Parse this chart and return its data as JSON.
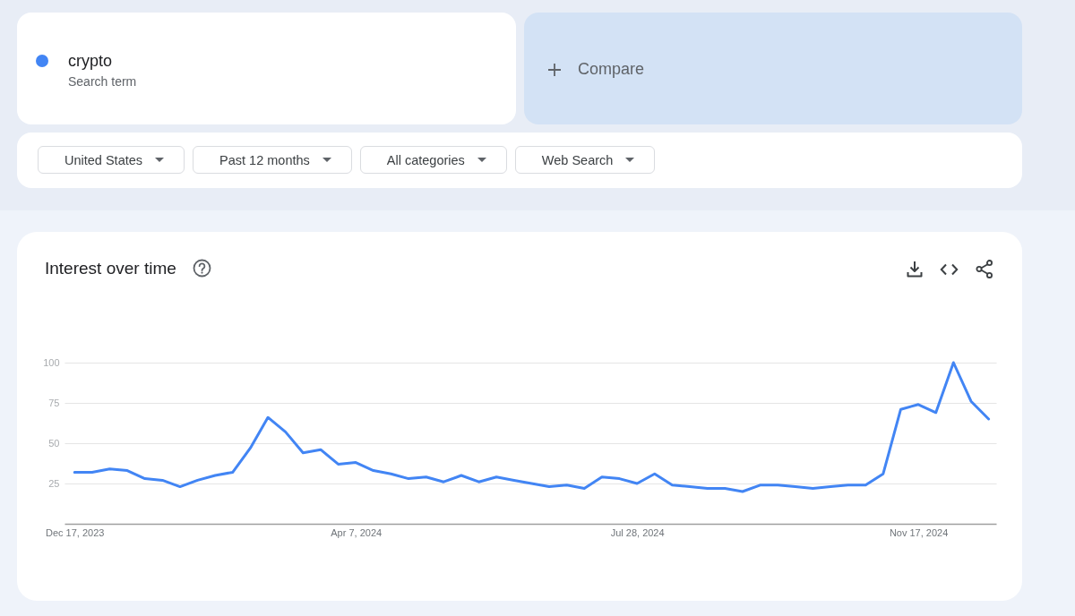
{
  "chart_data": {
    "type": "line",
    "title": "Interest over time",
    "annotations": [
      "Search term",
      "Compare",
      "United States",
      "Past 12 months",
      "All categories",
      "Web Search"
    ],
    "x": [
      "2023-12-17",
      "2023-12-24",
      "2023-12-31",
      "2024-01-07",
      "2024-01-14",
      "2024-01-21",
      "2024-01-28",
      "2024-02-04",
      "2024-02-11",
      "2024-02-18",
      "2024-02-25",
      "2024-03-03",
      "2024-03-10",
      "2024-03-17",
      "2024-03-24",
      "2024-03-31",
      "2024-04-07",
      "2024-04-14",
      "2024-04-21",
      "2024-04-28",
      "2024-05-05",
      "2024-05-12",
      "2024-05-19",
      "2024-05-26",
      "2024-06-02",
      "2024-06-09",
      "2024-06-16",
      "2024-06-23",
      "2024-06-30",
      "2024-07-07",
      "2024-07-14",
      "2024-07-21",
      "2024-07-28",
      "2024-08-04",
      "2024-08-11",
      "2024-08-18",
      "2024-08-25",
      "2024-09-01",
      "2024-09-08",
      "2024-09-15",
      "2024-09-22",
      "2024-09-29",
      "2024-10-06",
      "2024-10-13",
      "2024-10-20",
      "2024-10-27",
      "2024-11-03",
      "2024-11-10",
      "2024-11-17",
      "2024-11-24",
      "2024-12-01",
      "2024-12-08",
      "2024-12-15"
    ],
    "series": [
      {
        "name": "crypto",
        "color": "#4285f4",
        "values": [
          32,
          32,
          34,
          33,
          28,
          27,
          23,
          27,
          30,
          32,
          47,
          66,
          57,
          44,
          46,
          37,
          38,
          33,
          31,
          28,
          29,
          26,
          30,
          26,
          29,
          27,
          25,
          23,
          24,
          22,
          29,
          28,
          25,
          31,
          24,
          23,
          22,
          22,
          20,
          24,
          24,
          23,
          22,
          23,
          24,
          24,
          31,
          71,
          74,
          69,
          100,
          76,
          65
        ]
      }
    ],
    "xlim": [
      "2023-12-13",
      "2024-12-18"
    ],
    "xticks": [
      {
        "value": "2023-12-17",
        "label": "Dec 17, 2023"
      },
      {
        "value": "2024-04-07",
        "label": "Apr 7, 2024"
      },
      {
        "value": "2024-07-28",
        "label": "Jul 28, 2024"
      },
      {
        "value": "2024-11-17",
        "label": "Nov 17, 2024"
      }
    ],
    "ylim": [
      0,
      100
    ],
    "yticks": [
      25,
      50,
      75,
      100
    ],
    "grid": "y",
    "legend": "top left"
  }
}
